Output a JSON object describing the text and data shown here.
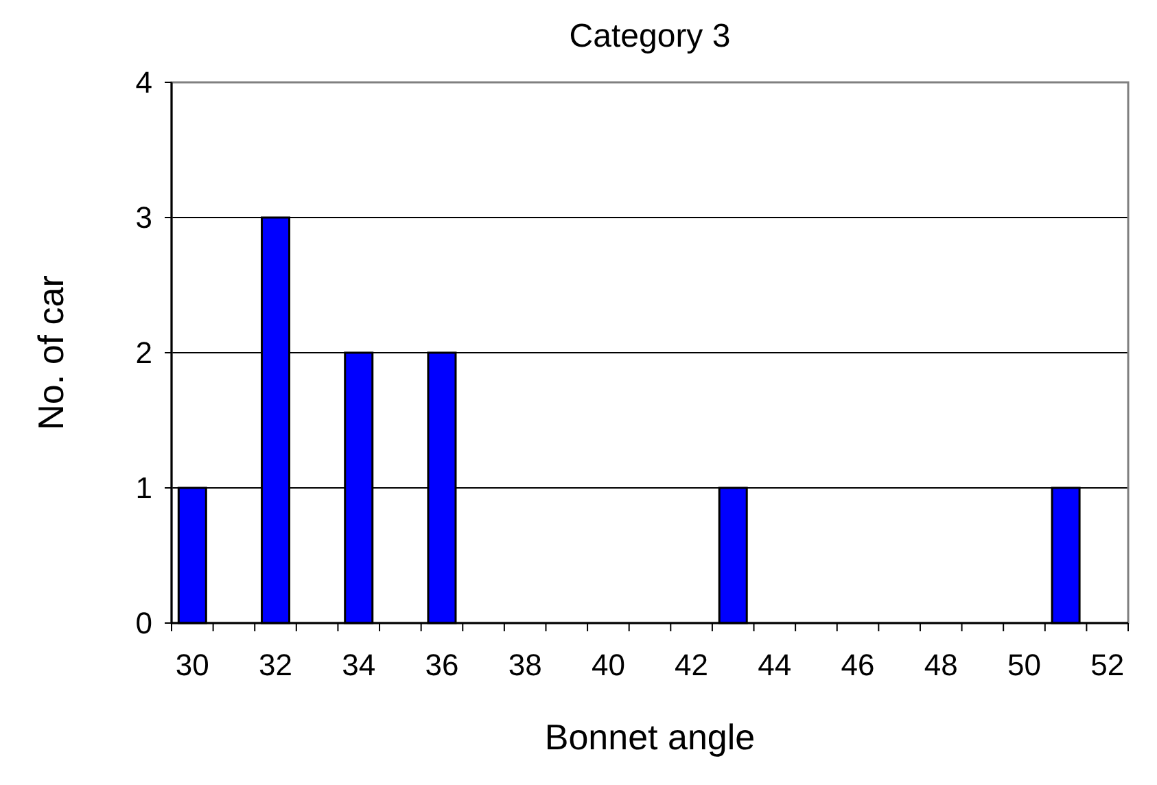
{
  "chart_data": {
    "type": "bar",
    "title": "Category 3",
    "xlabel": "Bonnet angle",
    "ylabel": "No. of car",
    "categories": [
      "30",
      null,
      "32",
      null,
      "34",
      null,
      "36",
      null,
      "38",
      null,
      "40",
      null,
      "42",
      null,
      "44",
      null,
      "46",
      null,
      "48",
      null,
      "50",
      null,
      "52"
    ],
    "values": [
      1,
      0,
      3,
      0,
      2,
      0,
      2,
      0,
      0,
      0,
      0,
      0,
      0,
      1,
      0,
      0,
      0,
      0,
      0,
      0,
      0,
      1,
      0
    ],
    "color": "#0000ff",
    "ylim": [
      0,
      4
    ],
    "yticks": [
      0,
      1,
      2,
      3,
      4
    ],
    "grid": "y"
  }
}
